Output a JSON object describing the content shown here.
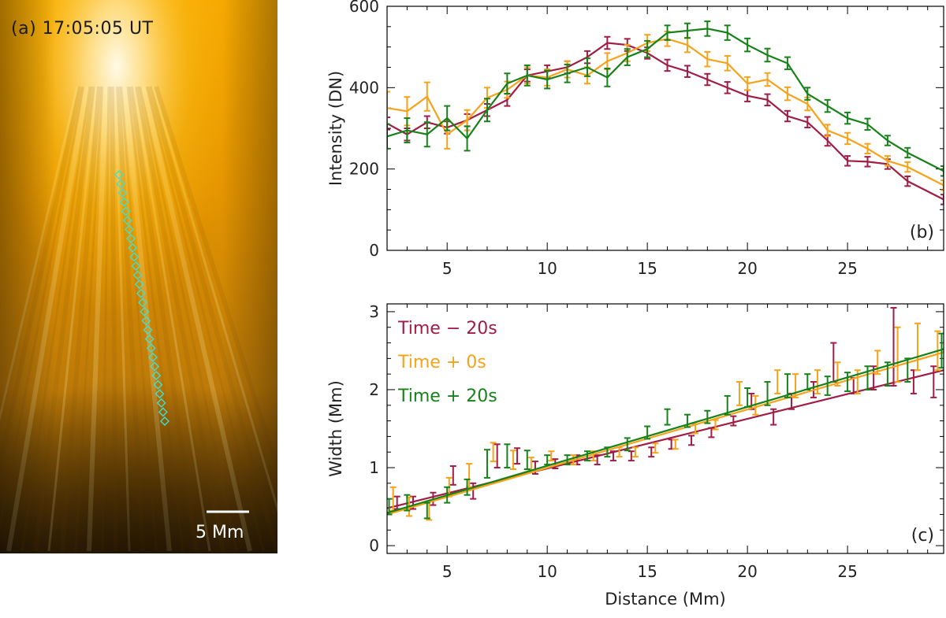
{
  "figure": {
    "panel_a": {
      "label": "(a) 17:05:05 UT",
      "scale_bar_label": "5 Mm",
      "track_color": "#40e0d0"
    },
    "colors": {
      "minus20": "#a01d45",
      "zero": "#f7a21b",
      "plus20": "#17821a"
    }
  },
  "chart_data": [
    {
      "id": "b",
      "type": "line",
      "panel_label": "(b)",
      "title": "",
      "xlabel": "",
      "ylabel": "Intensity (DN)",
      "xlim": [
        2,
        29.8
      ],
      "ylim": [
        0,
        600
      ],
      "xticks": [
        5,
        10,
        15,
        20,
        25
      ],
      "yticks": [
        0,
        200,
        400,
        600
      ],
      "series": [
        {
          "name": "Time − 20s",
          "x": [
            2,
            3,
            4,
            5,
            6,
            7,
            8,
            9,
            10,
            11,
            12,
            13,
            14,
            15,
            16,
            17,
            18,
            19,
            20,
            21,
            22,
            23,
            24,
            25,
            26,
            27,
            28,
            29.8
          ],
          "values": [
            312,
            285,
            315,
            302,
            320,
            345,
            370,
            430,
            440,
            450,
            475,
            510,
            505,
            485,
            455,
            440,
            420,
            400,
            380,
            370,
            330,
            315,
            270,
            220,
            218,
            212,
            170,
            125
          ],
          "err": [
            15,
            15,
            15,
            15,
            15,
            15,
            15,
            15,
            15,
            15,
            15,
            15,
            15,
            14,
            14,
            14,
            14,
            14,
            14,
            14,
            13,
            13,
            13,
            12,
            12,
            12,
            12,
            12
          ]
        },
        {
          "name": "Time + 0s",
          "x": [
            2,
            3,
            4,
            5,
            6,
            7,
            8,
            9,
            10,
            11,
            12,
            13,
            14,
            15,
            16,
            17,
            18,
            19,
            20,
            21,
            22,
            23,
            24,
            25,
            26,
            27,
            28,
            29.8
          ],
          "values": [
            350,
            342,
            378,
            285,
            320,
            375,
            395,
            430,
            425,
            445,
            430,
            465,
            485,
            510,
            520,
            505,
            470,
            460,
            410,
            420,
            385,
            360,
            295,
            275,
            250,
            220,
            205,
            160
          ],
          "err": [
            40,
            35,
            35,
            35,
            25,
            25,
            20,
            20,
            20,
            20,
            20,
            20,
            20,
            20,
            18,
            18,
            18,
            18,
            16,
            16,
            16,
            16,
            14,
            14,
            12,
            12,
            12,
            12
          ]
        },
        {
          "name": "Time + 20s",
          "x": [
            2,
            3,
            4,
            5,
            6,
            7,
            8,
            9,
            10,
            11,
            12,
            13,
            14,
            15,
            16,
            17,
            18,
            19,
            20,
            21,
            22,
            23,
            24,
            25,
            26,
            27,
            28,
            29.8
          ],
          "values": [
            280,
            295,
            285,
            325,
            275,
            345,
            410,
            430,
            420,
            435,
            450,
            425,
            475,
            495,
            535,
            540,
            545,
            535,
            505,
            480,
            460,
            385,
            355,
            325,
            310,
            270,
            240,
            195
          ],
          "err": [
            30,
            30,
            30,
            30,
            30,
            28,
            25,
            25,
            22,
            22,
            22,
            22,
            20,
            20,
            18,
            18,
            18,
            18,
            16,
            16,
            15,
            15,
            15,
            14,
            14,
            12,
            12,
            12
          ]
        }
      ]
    },
    {
      "id": "c",
      "type": "scatter",
      "panel_label": "(c)",
      "title": "",
      "xlabel": "Distance (Mm)",
      "ylabel": "Width (Mm)",
      "xlim": [
        2,
        29.8
      ],
      "ylim": [
        -0.1,
        3.1
      ],
      "xticks": [
        5,
        10,
        15,
        20,
        25
      ],
      "yticks": [
        0,
        1,
        2,
        3
      ],
      "legend_position": "top-left",
      "series": [
        {
          "name": "Time − 20s",
          "x": [
            2.5,
            3.3,
            4.3,
            5.3,
            6.3,
            7.5,
            8.5,
            9.4,
            10.4,
            11.5,
            12.5,
            13.3,
            14.2,
            15.2,
            16.2,
            17.2,
            18.2,
            19.3,
            20.2,
            21.3,
            22.2,
            23.3,
            24.3,
            25.3,
            26.3,
            27.3,
            28.3,
            29.3
          ],
          "values": [
            0.55,
            0.55,
            0.6,
            0.9,
            0.7,
            1.15,
            1.15,
            1.0,
            1.05,
            1.1,
            1.1,
            1.15,
            1.15,
            1.2,
            1.3,
            1.35,
            1.45,
            1.6,
            1.85,
            1.65,
            1.85,
            2.0,
            2.35,
            2.05,
            2.15,
            2.55,
            2.1,
            2.1
          ],
          "err": [
            0.08,
            0.08,
            0.08,
            0.12,
            0.1,
            0.15,
            0.1,
            0.08,
            0.06,
            0.06,
            0.06,
            0.06,
            0.06,
            0.06,
            0.06,
            0.06,
            0.06,
            0.06,
            0.1,
            0.1,
            0.1,
            0.1,
            0.25,
            0.1,
            0.15,
            0.5,
            0.15,
            0.2
          ],
          "fit": [
            0.48,
            2.25
          ]
        },
        {
          "name": "Time + 0s",
          "x": [
            2.3,
            3.1,
            4.1,
            5.1,
            6.1,
            7.3,
            8.3,
            9.2,
            10.2,
            11.3,
            12.3,
            13.6,
            14.4,
            15.4,
            16.4,
            17.4,
            18.4,
            19.6,
            20.4,
            21.5,
            22.4,
            23.5,
            24.5,
            25.5,
            26.5,
            27.5,
            28.5,
            29.5
          ],
          "values": [
            0.6,
            0.5,
            0.45,
            0.75,
            0.9,
            1.2,
            1.1,
            1.05,
            1.15,
            1.1,
            1.15,
            1.2,
            1.2,
            1.25,
            1.3,
            1.5,
            1.55,
            1.95,
            1.8,
            2.1,
            2.05,
            2.1,
            2.2,
            2.1,
            2.35,
            2.45,
            2.55,
            2.5
          ],
          "err": [
            0.15,
            0.12,
            0.12,
            0.12,
            0.15,
            0.12,
            0.12,
            0.08,
            0.06,
            0.06,
            0.06,
            0.06,
            0.06,
            0.06,
            0.06,
            0.06,
            0.06,
            0.15,
            0.12,
            0.15,
            0.15,
            0.15,
            0.15,
            0.15,
            0.15,
            0.35,
            0.3,
            0.25
          ],
          "fit": [
            0.4,
            2.48
          ]
        },
        {
          "name": "Time + 20s",
          "x": [
            2.1,
            3.0,
            4.0,
            5.0,
            6.0,
            7.0,
            8.0,
            9.0,
            10.0,
            11.0,
            12.0,
            13.0,
            14.0,
            15.0,
            16.0,
            17.0,
            18.0,
            19.0,
            20.0,
            21.0,
            22.0,
            23.0,
            24.0,
            25.0,
            26.0,
            27.0,
            28.0,
            29.7
          ],
          "values": [
            0.5,
            0.55,
            0.45,
            0.65,
            0.75,
            1.05,
            1.15,
            1.1,
            1.1,
            1.1,
            1.15,
            1.2,
            1.3,
            1.45,
            1.65,
            1.6,
            1.65,
            1.8,
            1.9,
            1.95,
            2.05,
            2.1,
            2.05,
            2.1,
            2.15,
            2.2,
            2.25,
            2.5
          ],
          "err": [
            0.1,
            0.1,
            0.1,
            0.1,
            0.1,
            0.18,
            0.15,
            0.12,
            0.06,
            0.06,
            0.06,
            0.06,
            0.08,
            0.08,
            0.1,
            0.08,
            0.08,
            0.12,
            0.12,
            0.15,
            0.15,
            0.1,
            0.12,
            0.12,
            0.15,
            0.15,
            0.15,
            0.22
          ],
          "fit": [
            0.42,
            2.52
          ]
        }
      ]
    }
  ]
}
